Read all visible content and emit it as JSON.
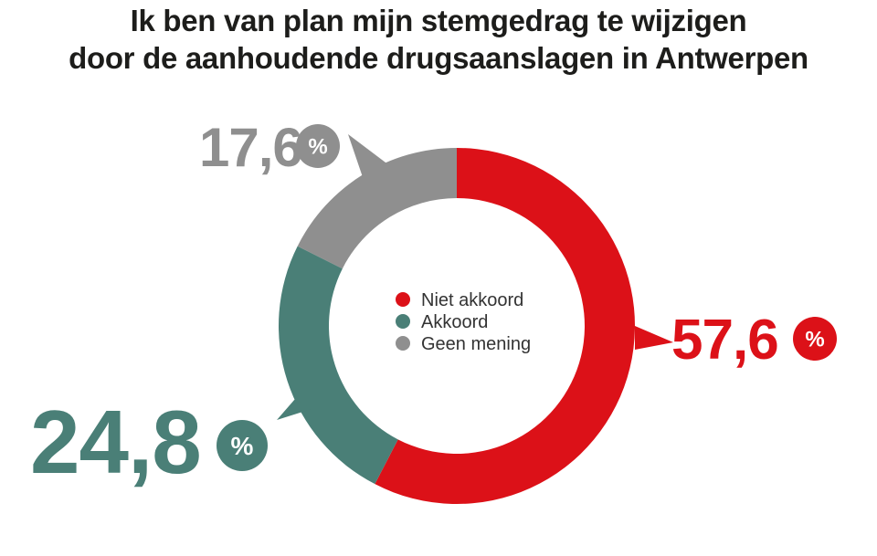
{
  "title_line1": "Ik ben van plan mijn stemgedrag te wijzigen",
  "title_line2": "door de aanhoudende drugsaanslagen in Antwerpen",
  "chart_data": {
    "type": "pie",
    "donut": true,
    "title": "Ik ben van plan mijn stemgedrag te wijzigen door de aanhoudende drugsaanslagen in Antwerpen",
    "categories": [
      "Niet akkoord",
      "Akkoord",
      "Geen mening"
    ],
    "values": [
      57.6,
      24.8,
      17.6
    ],
    "value_labels": [
      "57,6",
      "24,8",
      "17,6"
    ],
    "percent_sign": "%",
    "colors": [
      "#dc1118",
      "#4a7f77",
      "#8f8f8f"
    ],
    "legend": {
      "placement": "center"
    }
  }
}
